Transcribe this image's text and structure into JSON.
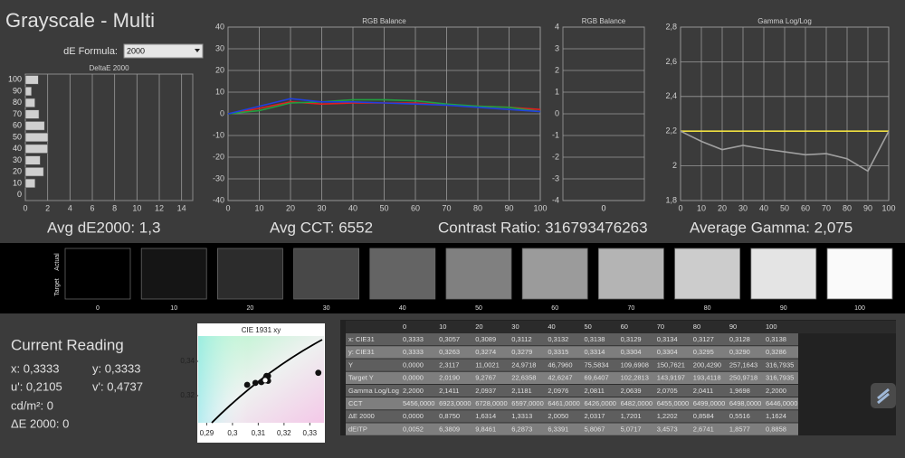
{
  "header": {
    "title": "Grayscale - Multi",
    "formula_label": "dE Formula:",
    "formula_value": "2000"
  },
  "chart_data": [
    {
      "type": "bar",
      "orientation": "horizontal",
      "title": "DeltaE 2000",
      "categories": [
        0,
        10,
        20,
        30,
        40,
        50,
        60,
        70,
        80,
        90,
        100
      ],
      "values": [
        0.0,
        0.875,
        1.6314,
        1.3313,
        2.005,
        2.0317,
        1.7201,
        1.2202,
        0.8584,
        0.5516,
        1.1624
      ],
      "color": "#cfcfcf",
      "xlim": [
        0,
        15
      ],
      "xticks": [
        0,
        2,
        4,
        6,
        8,
        10,
        12,
        14
      ],
      "grid": "x"
    },
    {
      "type": "line",
      "title": "RGB Balance",
      "x": [
        0,
        10,
        20,
        30,
        40,
        50,
        60,
        70,
        80,
        90,
        100
      ],
      "series": [
        {
          "color": "#e02020",
          "values": [
            0,
            2.5,
            5.5,
            4.5,
            5,
            5,
            5,
            4,
            3.5,
            3,
            2
          ]
        },
        {
          "color": "#20a040",
          "values": [
            0,
            1.5,
            5,
            5.5,
            6.5,
            6.5,
            6,
            4.5,
            3.5,
            3,
            1
          ]
        },
        {
          "color": "#2040e0",
          "values": [
            0,
            3.5,
            7,
            5.5,
            5.5,
            5,
            4.5,
            4,
            3,
            2,
            1
          ]
        }
      ],
      "xlim": [
        0,
        100
      ],
      "xticks": [
        0,
        10,
        20,
        30,
        40,
        50,
        60,
        70,
        80,
        90,
        100
      ],
      "ylim": [
        -40,
        40
      ],
      "yticks": [
        -40,
        -30,
        -20,
        -10,
        0,
        10,
        20,
        30,
        40
      ],
      "grid": "xy"
    },
    {
      "type": "bar",
      "orientation": "vertical",
      "title": "RGB Balance",
      "categories": [
        0
      ],
      "values": [
        0
      ],
      "color": "#cfcfcf",
      "ylim": [
        -4,
        4
      ],
      "yticks": [
        -4,
        -3,
        -2,
        -1,
        0,
        1,
        2,
        3,
        4
      ],
      "grid": "y"
    },
    {
      "type": "line",
      "title": "Gamma Log/Log",
      "x": [
        0,
        10,
        20,
        30,
        40,
        50,
        60,
        70,
        80,
        90,
        100
      ],
      "series": [
        {
          "color": "#f0e040",
          "values": [
            2.2,
            2.2,
            2.2,
            2.2,
            2.2,
            2.2,
            2.2,
            2.2,
            2.2,
            2.2,
            2.2
          ]
        },
        {
          "color": "#a0a0a0",
          "values": [
            2.2,
            2.1411,
            2.0937,
            2.1181,
            2.0976,
            2.0811,
            2.0639,
            2.0705,
            2.0411,
            1.9698,
            2.2
          ]
        }
      ],
      "xlim": [
        0,
        100
      ],
      "xticks": [
        0,
        10,
        20,
        30,
        40,
        50,
        60,
        70,
        80,
        90,
        100
      ],
      "ylim": [
        1.8,
        2.8
      ],
      "yticks": [
        {
          "value": 1.8,
          "label": "1,8"
        },
        2,
        {
          "value": 2.2,
          "label": "2,2"
        },
        {
          "value": 2.4,
          "label": "2,4"
        },
        {
          "value": 2.6,
          "label": "2,6"
        },
        {
          "value": 2.8,
          "label": "2,8"
        }
      ],
      "grid": "xy"
    },
    {
      "type": "scatter",
      "title": "CIE 1931 xy",
      "series": [
        {
          "color": "#111111",
          "x": [
            0.3333,
            0.3057,
            0.3089,
            0.3112,
            0.3132,
            0.3138,
            0.3129,
            0.3134,
            0.3127,
            0.3128,
            0.3138
          ],
          "values": [
            0.3333,
            0.3263,
            0.3274,
            0.3279,
            0.3315,
            0.3314,
            0.3304,
            0.3304,
            0.3295,
            0.329,
            0.3286
          ]
        },
        {
          "color": "#ffffff",
          "x": [
            0.3127
          ],
          "values": [
            0.329
          ]
        }
      ],
      "xlim": [
        0.2867,
        0.3355
      ],
      "xticks": [
        {
          "value": 0.29,
          "label": "0,29"
        },
        {
          "value": 0.3,
          "label": "0,3"
        },
        {
          "value": 0.31,
          "label": "0,31"
        },
        {
          "value": 0.32,
          "label": "0,32"
        },
        {
          "value": 0.33,
          "label": "0,33"
        }
      ],
      "ylim": [
        0.3042,
        0.3547
      ],
      "yticks": [
        {
          "value": 0.32,
          "label": "0,32"
        },
        {
          "value": 0.34,
          "label": "0,34"
        }
      ],
      "grid": "none"
    }
  ],
  "summary": [
    "Avg dE2000: 1,3",
    "Avg CCT: 6552",
    "Contrast Ratio: 316793476263",
    "Average Gamma: 2,075"
  ],
  "swatches": {
    "row_labels": [
      "Actual",
      "Target"
    ],
    "levels": [
      0,
      10,
      20,
      30,
      40,
      50,
      60,
      70,
      80,
      90,
      100
    ],
    "colors": [
      "#000000",
      "#151515",
      "#2c2c2c",
      "#484848",
      "#646464",
      "#808080",
      "#9b9b9b",
      "#b4b4b4",
      "#cccccc",
      "#e4e4e4",
      "#fafafa"
    ]
  },
  "current_reading": {
    "title": "Current Reading",
    "x": "x: 0,3333",
    "y": "y: 0,3333",
    "u": "u': 0,2105",
    "v": "v': 0,4737",
    "lum": "cd/m²: 0",
    "de": "ΔE 2000: 0"
  },
  "table": {
    "header": [
      0,
      10,
      20,
      30,
      40,
      50,
      60,
      70,
      80,
      90,
      100
    ],
    "rows": [
      [
        "x: CIE31",
        "0,3333",
        "0,3057",
        "0,3089",
        "0,3112",
        "0,3132",
        "0,3138",
        "0,3129",
        "0,3134",
        "0,3127",
        "0,3128",
        "0,3138"
      ],
      [
        "y: CIE31",
        "0,3333",
        "0,3263",
        "0,3274",
        "0,3279",
        "0,3315",
        "0,3314",
        "0,3304",
        "0,3304",
        "0,3295",
        "0,3290",
        "0,3286"
      ],
      [
        "Y",
        "0,0000",
        "2,3117",
        "11,0021",
        "24,9718",
        "46,7960",
        "75,5834",
        "109,6908",
        "150,7621",
        "200,4290",
        "257,1643",
        "316,7935"
      ],
      [
        "Target Y",
        "0,0000",
        "2,0190",
        "9,2767",
        "22,6358",
        "42,6247",
        "69,6407",
        "102,2813",
        "143,9197",
        "193,4118",
        "250,9718",
        "316,7935"
      ],
      [
        "Gamma Log/Log",
        "2,2000",
        "2,1411",
        "2,0937",
        "2,1181",
        "2,0976",
        "2,0811",
        "2,0639",
        "2,0705",
        "2,0411",
        "1,9698",
        "2,2000"
      ],
      [
        "CCT",
        "5456,0000",
        "6923,0000",
        "6728,0000",
        "6597,0000",
        "6461,0000",
        "6426,0000",
        "6482,0000",
        "6455,0000",
        "6499,0000",
        "6498,0000",
        "6446,0000"
      ],
      [
        "ΔE 2000",
        "0,0000",
        "0,8750",
        "1,6314",
        "1,3313",
        "2,0050",
        "2,0317",
        "1,7201",
        "1,2202",
        "0,8584",
        "0,5516",
        "1,1624"
      ],
      [
        "dEITP",
        "0,0052",
        "6,3809",
        "9,8461",
        "6,2873",
        "6,3391",
        "5,8067",
        "5,0717",
        "3,4573",
        "2,6741",
        "1,8577",
        "0,8858"
      ]
    ]
  }
}
